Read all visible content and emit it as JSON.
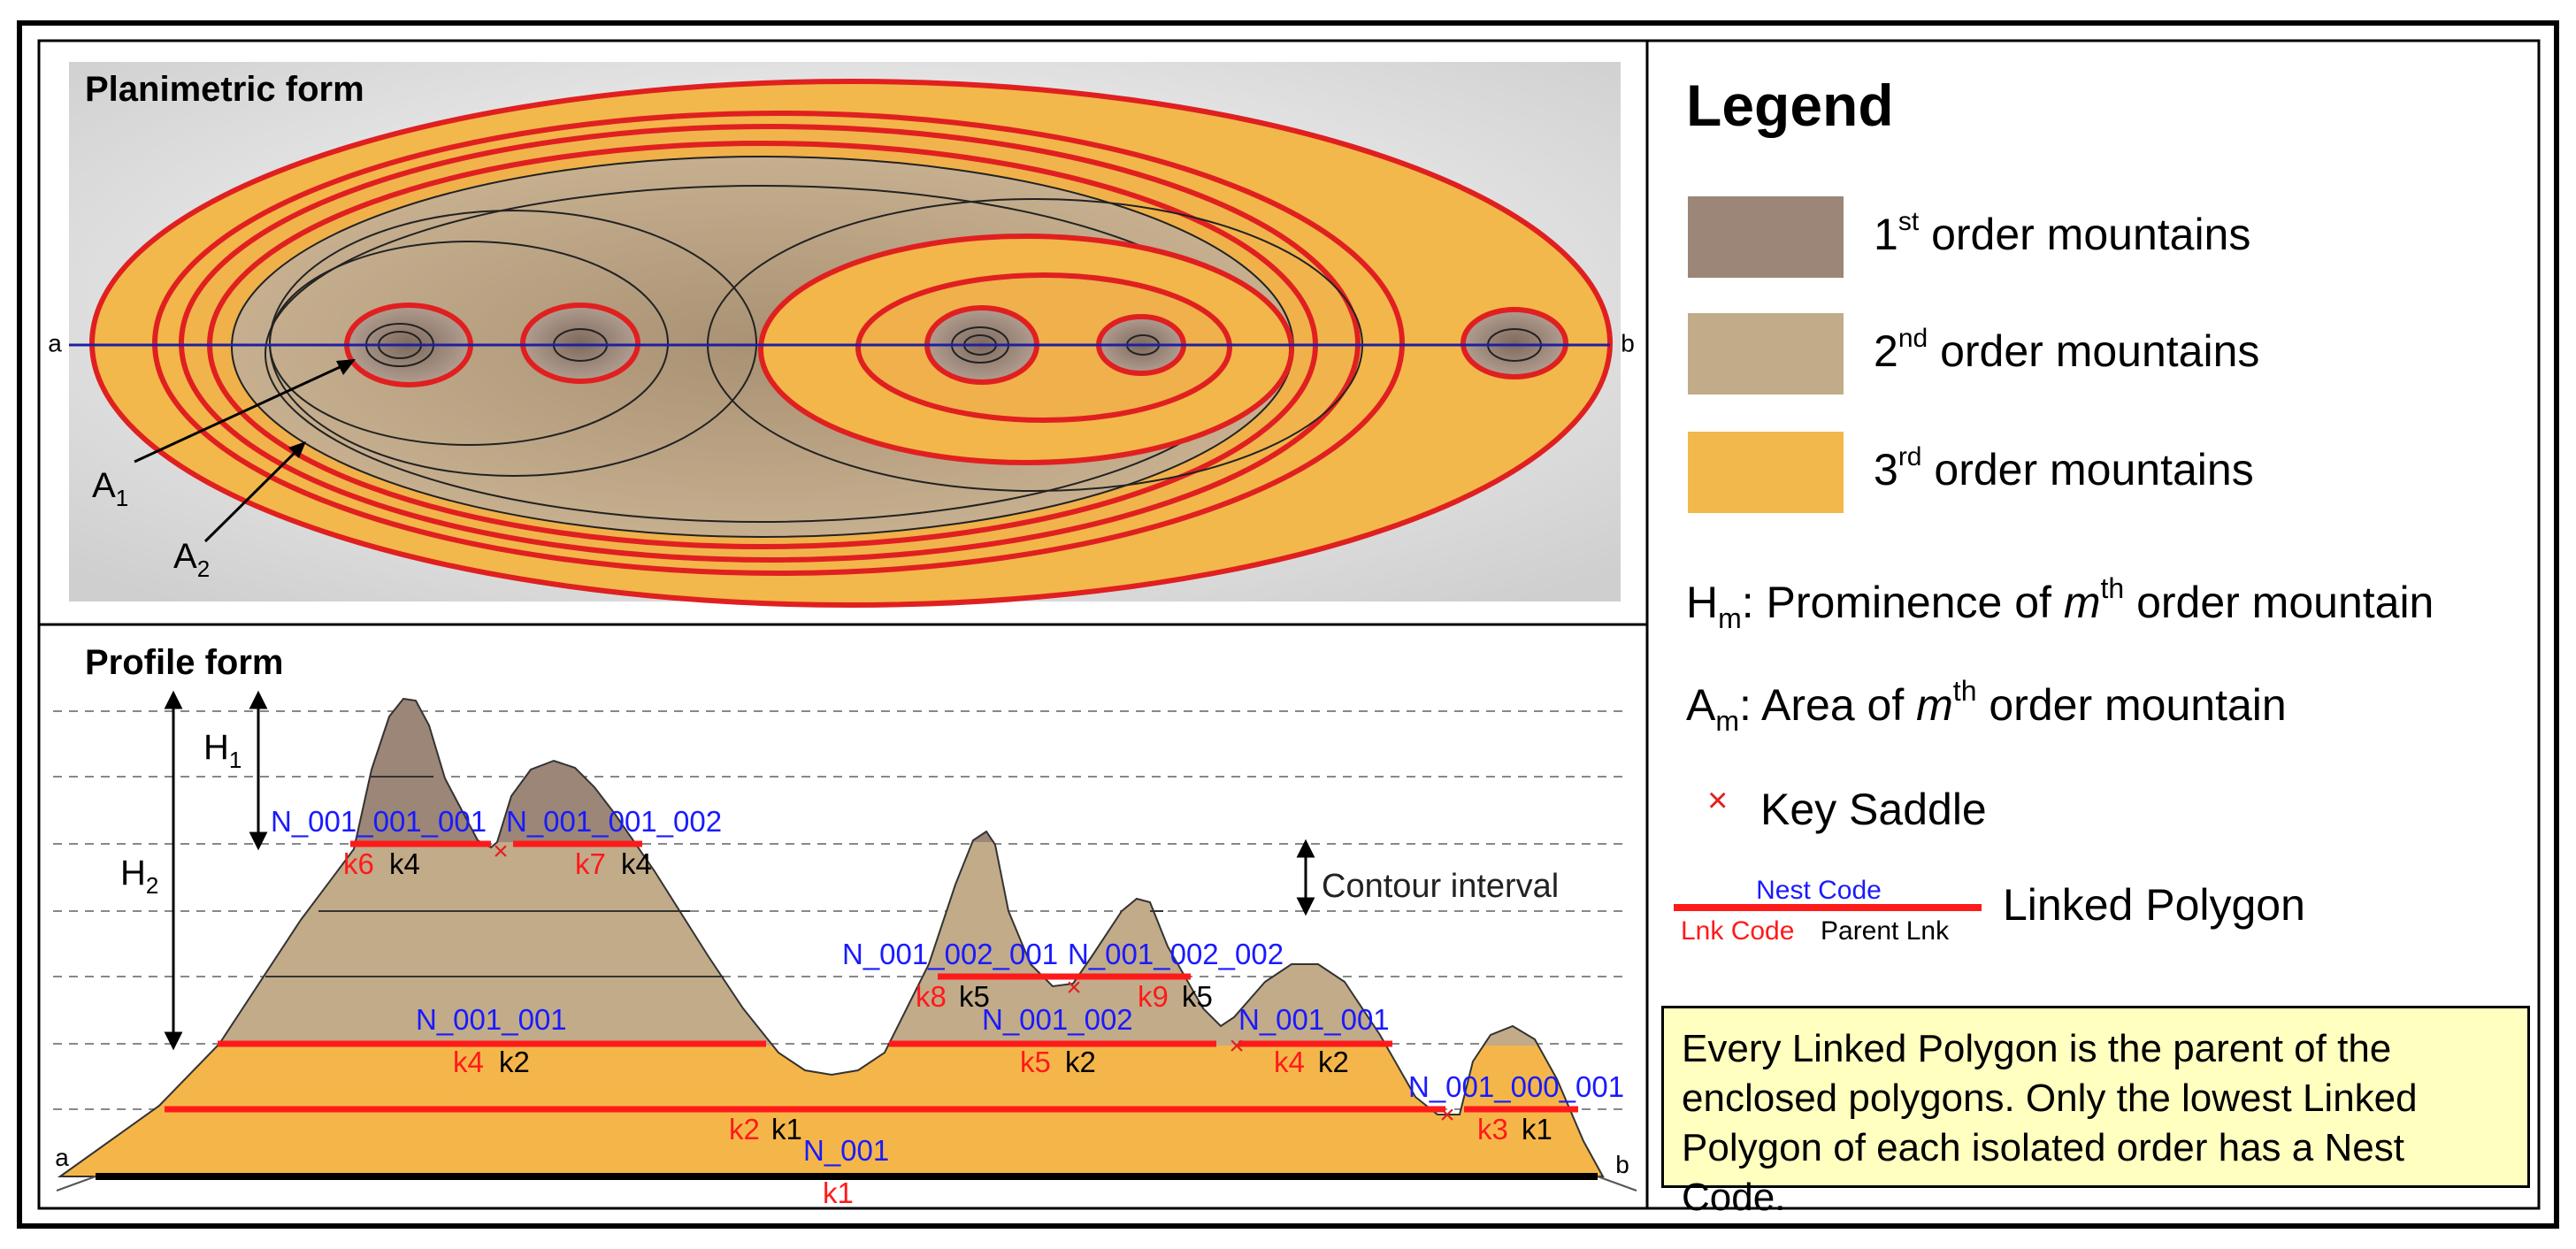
{
  "planimetric": {
    "title": "Planimetric form",
    "label_a": "a",
    "label_b": "b",
    "a1_label": "A",
    "a1_sub": "1",
    "a2_label": "A",
    "a2_sub": "2"
  },
  "profile": {
    "title": "Profile form",
    "label_a": "a",
    "label_b": "b",
    "h1_label": "H",
    "h1_sub": "1",
    "h2_label": "H",
    "h2_sub": "2",
    "contour_interval": "Contour interval",
    "nest_codes": [
      "N_001_001_001",
      "N_001_001_002",
      "N_001_002_001",
      "N_001_002_002",
      "N_001_001",
      "N_001_002",
      "N_001_001",
      "N_001_000_001",
      "N_001"
    ],
    "lnk_codes": [
      "k6",
      "k7",
      "k8",
      "k9",
      "k4",
      "k5",
      "k4",
      "k3",
      "k2",
      "k1"
    ],
    "parent_lnks": [
      "k4",
      "k4",
      "k5",
      "k5",
      "k2",
      "k2",
      "k2",
      "k1",
      "k1"
    ]
  },
  "legend": {
    "title": "Legend",
    "items": [
      {
        "num": "1",
        "sup": "st",
        "text": "order mountains",
        "color": "#9b8677"
      },
      {
        "num": "2",
        "sup": "nd",
        "text": "order mountains",
        "color": "#c2ab89"
      },
      {
        "num": "3",
        "sup": "rd",
        "text": "order mountains",
        "color": "#f2b84b"
      }
    ],
    "hm_prefix": "H",
    "hm_sub": "m",
    "hm_text1": ": Prominence of ",
    "hm_m": "m",
    "hm_sup": "th",
    "hm_text2": " order mountain",
    "am_prefix": "A",
    "am_sub": "m",
    "am_text1": ": Area of ",
    "am_m": "m",
    "am_sup": "th",
    "am_text2": " order mountain",
    "saddle_symbol": "×",
    "saddle_label": "Key Saddle",
    "nest_code_label": "Nest Code",
    "lnk_code_label": "Lnk Code",
    "parent_lnk_label": "Parent Lnk",
    "linked_polygon_label": "Linked Polygon",
    "note": "Every Linked Polygon is the parent of the enclosed polygons. Only the lowest Linked Polygon of each isolated order has a Nest Code."
  }
}
